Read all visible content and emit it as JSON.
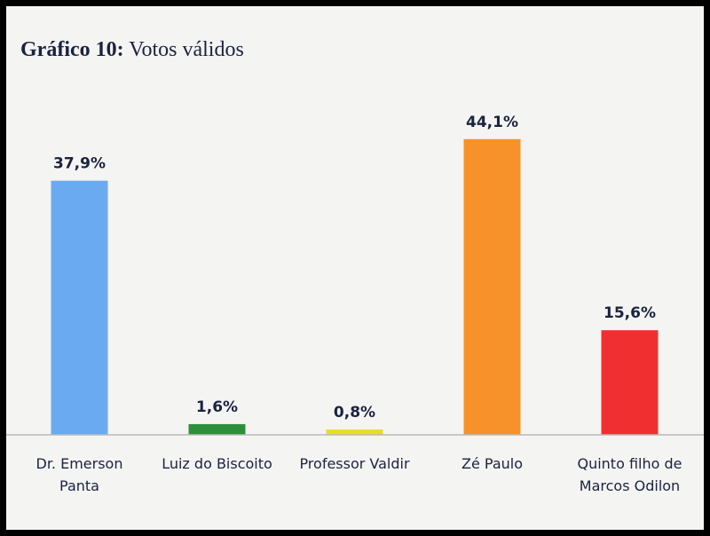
{
  "chart_data": {
    "type": "bar",
    "title_number": "Gráfico 10:",
    "title_text": "Votos válidos",
    "categories": [
      [
        "Dr. Emerson",
        "Panta"
      ],
      [
        "Luiz do Biscoito"
      ],
      [
        "Professor Valdir"
      ],
      [
        "Zé Paulo"
      ],
      [
        "Quinto filho de",
        "Marcos Odilon"
      ]
    ],
    "values": [
      37.9,
      1.6,
      0.8,
      44.1,
      15.6
    ],
    "value_labels": [
      "37,9%",
      "1,6%",
      "0,8%",
      "44,1%",
      "15,6%"
    ],
    "colors": [
      "#6aaaf0",
      "#2e8f3a",
      "#e8de2a",
      "#f7922a",
      "#f03030"
    ],
    "ylim": [
      0,
      45
    ],
    "grid": false,
    "legend": "none"
  }
}
